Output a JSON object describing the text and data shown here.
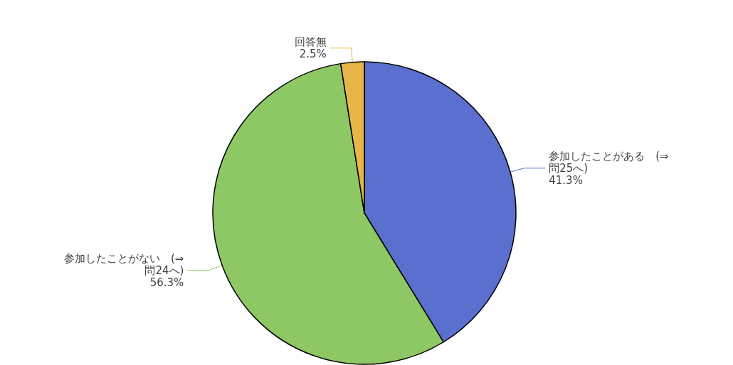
{
  "chart_data": {
    "type": "pie",
    "categories": [
      "参加したことがある　(⇒問25へ)",
      "参加したことがない　(⇒問24へ)",
      "回答無"
    ],
    "values": [
      41.3,
      56.3,
      2.5
    ],
    "colors": [
      "#5b6fcf",
      "#8dc864",
      "#e8b648"
    ],
    "value_labels": [
      "41.3%",
      "56.3%",
      "2.5%"
    ],
    "legend": false
  }
}
